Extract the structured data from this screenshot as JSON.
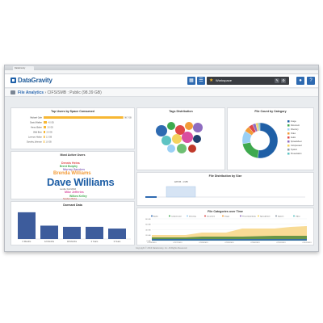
{
  "window": {
    "tab_title": "DataGravity"
  },
  "header": {
    "logo": "DataGravity",
    "workspace_label": "Workspace",
    "icons": [
      "grid-icon",
      "list-icon",
      "star-icon",
      "settings-icon",
      "pencil-icon",
      "user-icon",
      "help-icon"
    ]
  },
  "breadcrumb": {
    "section": "File Analytics",
    "path": "CIFS/SMB : Public (98.39 GB)"
  },
  "panels": {
    "top_users": "Top Users by Space Consumed",
    "tags": "Tags Distribution",
    "file_count": "File Count by Category",
    "most_active": "Most Active Users",
    "file_dist": "File Distribution by Size",
    "dormant": "Dormant Data",
    "categories_time": "File Categories over Time"
  },
  "top_users": {
    "names": [
      "Michael Gale",
      "David Walker",
      "Henry Baker",
      "Walt Bern",
      "Lorenzo Holton",
      "Dorothy Johnson"
    ],
    "values": [
      98.7,
      4.0,
      3.0,
      2.0,
      1.5,
      1.0
    ],
    "max": 100,
    "top_label": "98.7 GB",
    "value_labels": [
      "98.7 GB",
      "4.0 GB",
      "3.0 GB",
      "2.0 GB",
      "1.5 GB",
      "1.0 GB"
    ]
  },
  "most_active": {
    "names": [
      "Dennis Heins",
      "Brent Murphy",
      "Murray Sanders",
      "Brenda Williams",
      "Dave Williams",
      "Leslie Fairchild",
      "Mike Jefferies",
      "Wilkes Kelley",
      "Sanders Burke"
    ]
  },
  "dormant": {
    "values": [
      92,
      46,
      42,
      42,
      36
    ],
    "labels": [
      "6 Months",
      "12 Months",
      "18 Months",
      "2 Years",
      "3 Years"
    ]
  },
  "file_count": {
    "legend": [
      "Image",
      "Document",
      "Directory",
      "Video",
      "Audio",
      "Spreadsheet",
      "Compressed",
      "System",
      "Presentation"
    ],
    "values": [
      52,
      20,
      12,
      5,
      4,
      3,
      2,
      1,
      1
    ],
    "colors": [
      "#1f5fa6",
      "#3ea94e",
      "#9ad0f5",
      "#f29b38",
      "#e04848",
      "#8e6cc0",
      "#f4d35e",
      "#8c9aa8",
      "#5dc3c3"
    ]
  },
  "file_dist": {
    "labels": [
      "128 KB - 1 MB"
    ],
    "tick_labels": [
      "",
      "",
      "",
      "",
      "",
      "",
      "",
      ""
    ]
  },
  "cat_time": {
    "legend": [
      "Audio",
      "Compressed",
      "Directory",
      "Document",
      "Image",
      "PresentationData",
      "Spreadsheet",
      "System",
      "Video"
    ],
    "y_ticks": [
      "80 GB",
      "60 GB",
      "40 GB",
      "20 GB",
      "0 GB"
    ],
    "x_ticks": [
      "07/26/2013",
      "07/27/2013",
      "07/28/2013",
      "07/29/2013",
      "07/30/2013",
      "07/31/2013",
      "07/01/2013"
    ]
  },
  "tags": {
    "bubbles": [
      {
        "color": "#2e6ab1"
      },
      {
        "color": "#3ea94e"
      },
      {
        "color": "#e04848"
      },
      {
        "color": "#f29b38"
      },
      {
        "color": "#8e6cc0"
      },
      {
        "color": "#5dc3c3"
      },
      {
        "color": "#f4d35e"
      },
      {
        "color": "#d94ea0"
      },
      {
        "color": "#1f3f6e"
      },
      {
        "color": "#9ad0f5"
      },
      {
        "color": "#6fbf73"
      },
      {
        "color": "#c0392b"
      }
    ]
  },
  "footer": "Copyright © 2013 DataGravity, Inc. All Rights Reserved."
}
